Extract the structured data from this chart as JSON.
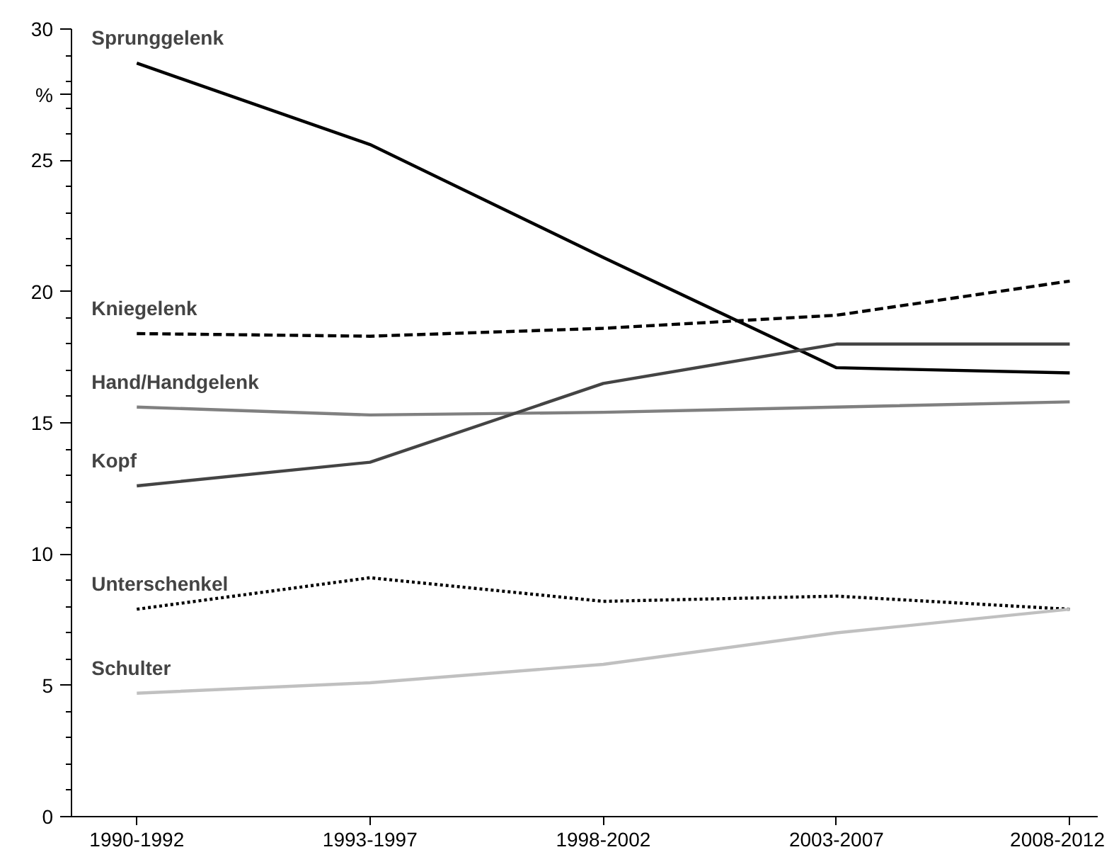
{
  "chart_data": {
    "type": "line",
    "categories": [
      "1990-1992",
      "1993-1997",
      "1998-2002",
      "2003-2007",
      "2008-2012"
    ],
    "ylim": [
      0,
      30
    ],
    "yticks": [
      0,
      {
        "value": 1,
        "label": null
      },
      {
        "value": 2,
        "label": null
      },
      {
        "value": 3,
        "label": null
      },
      {
        "value": 4,
        "label": null
      },
      5,
      {
        "value": 6,
        "label": null
      },
      {
        "value": 7,
        "label": null
      },
      {
        "value": 8,
        "label": null
      },
      {
        "value": 9,
        "label": null
      },
      10,
      {
        "value": 11,
        "label": null
      },
      {
        "value": 12,
        "label": null
      },
      {
        "value": 13,
        "label": null
      },
      {
        "value": 14,
        "label": null
      },
      15,
      {
        "value": 16,
        "label": null
      },
      {
        "value": 17,
        "label": null
      },
      {
        "value": 18,
        "label": null
      },
      {
        "value": 19,
        "label": null
      },
      20,
      {
        "value": 21,
        "label": null
      },
      {
        "value": 22,
        "label": null
      },
      {
        "value": 23,
        "label": null
      },
      {
        "value": 24,
        "label": null
      },
      25,
      {
        "value": 26,
        "label": null
      },
      {
        "value": 27,
        "label": null
      },
      {
        "value": 27.5,
        "label": "%"
      },
      {
        "value": 28,
        "label": null
      },
      {
        "value": 29,
        "label": null
      },
      30
    ],
    "grid": false,
    "marker": "none",
    "series": [
      {
        "name": "Sprunggelenk",
        "color": "#000000",
        "line_style": "solid",
        "values": [
          28.7,
          25.6,
          21.3,
          17.1,
          16.9
        ]
      },
      {
        "name": "Kniegelenk",
        "color": "#000000",
        "line_style": "dashed",
        "values": [
          18.4,
          18.3,
          18.6,
          19.1,
          20.4
        ]
      },
      {
        "name": "Hand/Handgelenk",
        "color": "#808080",
        "line_style": "solid",
        "values": [
          15.6,
          15.3,
          15.4,
          15.6,
          15.8
        ]
      },
      {
        "name": "Kopf",
        "color": "#444444",
        "line_style": "solid",
        "values": [
          12.6,
          13.5,
          16.5,
          18.0,
          18.0
        ]
      },
      {
        "name": "Unterschenkel",
        "color": "#000000",
        "line_style": "dotted",
        "values": [
          7.9,
          9.1,
          8.2,
          8.4,
          7.9
        ]
      },
      {
        "name": "Schulter",
        "color": "#c0c0c0",
        "line_style": "solid",
        "values": [
          4.7,
          5.1,
          5.8,
          7.0,
          7.9
        ]
      }
    ]
  }
}
